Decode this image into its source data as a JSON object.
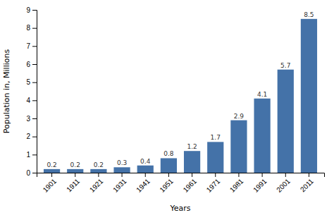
{
  "chart_data": {
    "type": "bar",
    "categories": [
      "1901",
      "1911",
      "1921",
      "1931",
      "1941",
      "1951",
      "1961",
      "1971",
      "1981",
      "1991",
      "2001",
      "2011"
    ],
    "values": [
      0.2,
      0.2,
      0.2,
      0.3,
      0.4,
      0.8,
      1.2,
      1.7,
      2.9,
      4.1,
      5.7,
      8.5
    ],
    "color": "#4472a8",
    "x_label": "Years",
    "y_label": "Population in, Millions",
    "ylim": [
      0,
      9
    ],
    "yticks": [
      0,
      1,
      2,
      3,
      4,
      5,
      6,
      7,
      8,
      9
    ],
    "grid": false,
    "data_labels": true
  }
}
